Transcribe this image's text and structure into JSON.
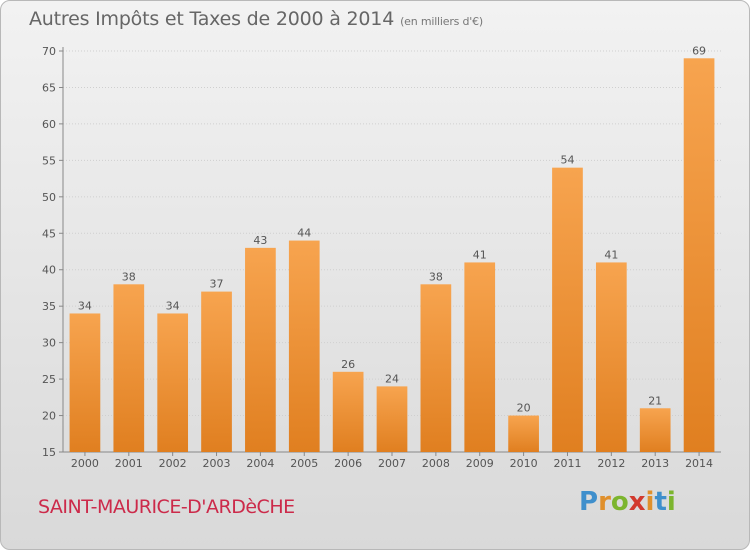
{
  "header": {
    "title": "Autres Impôts et Taxes de 2000 à 2014",
    "subtitle": "(en milliers d'€)"
  },
  "footer": {
    "commune": "SAINT-MAURICE-D'ARDèCHE",
    "logo_letters": [
      "P",
      "r",
      "o",
      "x",
      "i",
      "t",
      "i"
    ]
  },
  "colors": {
    "bar_light": "#f7a44f",
    "bar_dark": "#e07f20",
    "grid": "#cfcfcf",
    "axis_text": "#555555",
    "commune_text": "#cc2a4a"
  },
  "chart_data": {
    "type": "bar",
    "categories": [
      "2000",
      "2001",
      "2002",
      "2003",
      "2004",
      "2005",
      "2006",
      "2007",
      "2008",
      "2009",
      "2010",
      "2011",
      "2012",
      "2013",
      "2014"
    ],
    "values": [
      34,
      38,
      34,
      37,
      43,
      44,
      26,
      24,
      38,
      41,
      20,
      54,
      41,
      21,
      69
    ],
    "data_labels": [
      "34",
      "38",
      "34",
      "37",
      "43",
      "44",
      "26",
      "24",
      "38",
      "41",
      "20",
      "54",
      "41",
      "21",
      "69"
    ],
    "ylim": [
      15,
      70
    ],
    "yticks": [
      15,
      20,
      25,
      30,
      35,
      40,
      45,
      50,
      55,
      60,
      65,
      70
    ],
    "grid": true,
    "title": "Autres Impôts et Taxes de 2000 à 2014",
    "xlabel": "",
    "ylabel": ""
  }
}
